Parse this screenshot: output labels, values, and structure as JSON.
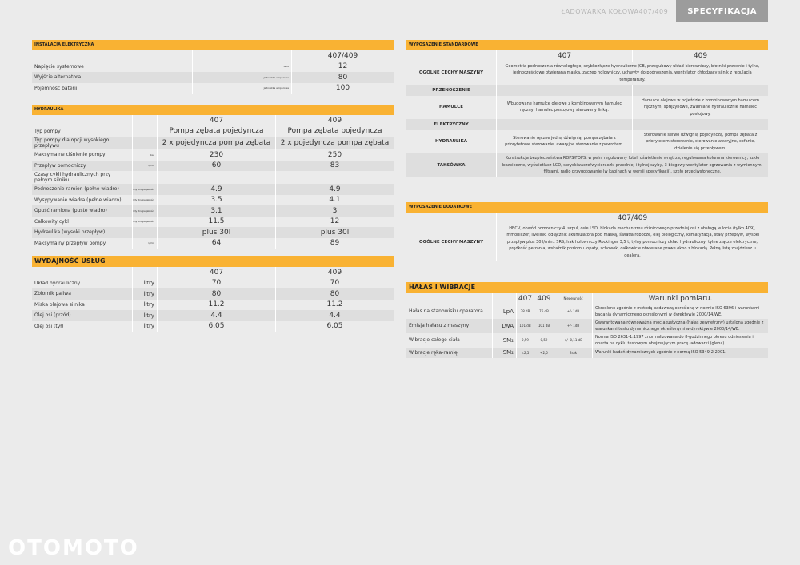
{
  "header": {
    "brand": "ŁADOWARKA KOŁOWA",
    "model": "407/409",
    "section": "SPECYFIKACJA"
  },
  "watermark": "OTOMOTO",
  "left": [
    {
      "title": "INSTALACJA ELEKTRYCZNA",
      "head": {
        "value": "407/409"
      },
      "rows": [
        {
          "label": "Napięcie systemowe",
          "unit": "Wolt",
          "value": "12"
        },
        {
          "label": "Wyjście alternatora",
          "unit": "Jednostka amperowa",
          "value": "80"
        },
        {
          "label": "Pojemność baterii",
          "unit": "Jednostka amperowa",
          "value": "100"
        }
      ]
    },
    {
      "title": "HYDRAULIKA",
      "head": {
        "v407": "407",
        "v409": "409"
      },
      "rows": [
        {
          "label": "Typ pompy",
          "v407": "Pompa zębata pojedyncza",
          "v409": "Pompa zębata pojedyncza"
        },
        {
          "label": "Typ pompy dla opcji wysokiego przepływu",
          "v407": "2 x pojedyncza pompa zębata",
          "v409": "2 x pojedyncza pompa zębata"
        },
        {
          "label": "Maksymalne ciśnienie pompy",
          "unit": "bar",
          "v407": "230",
          "v409": "250"
        },
        {
          "label": "Przepływ pomocniczy",
          "unit": "l/min",
          "v407": "60",
          "v409": "83"
        },
        {
          "label": "Czasy cykli hydraulicznych przy pełnym silniku"
        },
        {
          "label": "Podnoszenie ramion (pełne wiadro)",
          "unit": "Sekundy drugie jakości",
          "v407": "4.9",
          "v409": "4.9"
        },
        {
          "label": "Wysypywanie wiadra (pełne wiadro)",
          "unit": "Sekundy drugie jakości",
          "v407": "3.5",
          "v409": "4.1"
        },
        {
          "label": "Opuść ramiona (puste wiadro)",
          "unit": "Sekundy drugie jakości",
          "v407": "3.1",
          "v409": "3"
        },
        {
          "label": "Całkowity cykl",
          "unit": "Sekundy drugie jakości",
          "v407": "11.5",
          "v409": "12"
        },
        {
          "label": "Hydraulika (wysoki przepływ)",
          "v407": "plus 30l",
          "v409": "plus 30l"
        },
        {
          "label": "Maksymalny przepływ pompy",
          "unit": "l/min",
          "v407": "64",
          "v409": "89"
        }
      ]
    },
    {
      "title": "WYDAJNOŚĆ USŁUG",
      "head": {
        "v407": "407",
        "v409": "409"
      },
      "rows": [
        {
          "label": "Układ hydrauliczny",
          "unit": "litry",
          "v407": "70",
          "v409": "70"
        },
        {
          "label": "Zbiornik paliwa",
          "unit": "litry",
          "v407": "80",
          "v409": "80"
        },
        {
          "label": "Miska olejowa silnika",
          "unit": "litry",
          "v407": "11.2",
          "v409": "11.2"
        },
        {
          "label": "Olej osi (przód)",
          "unit": "litry",
          "v407": "4.4",
          "v409": "4.4"
        },
        {
          "label": "Olej osi (tył)",
          "unit": "litry",
          "v407": "6.05",
          "v409": "6.05"
        }
      ]
    }
  ],
  "right": [
    {
      "title": "WYPOSAŻENIE STANDARDOWE",
      "head": {
        "v407": "407",
        "v409": "409"
      },
      "rows": [
        {
          "label": "OGÓLNE CECHY MASZYNY",
          "both": "Geometria podnoszenia równoległego, szybkozłącze hydrauliczne JCB, przegubowy układ kierowniczy, błotniki przednie i tylne, jednoczęściowe otwierana maska, zaczep holowniczy, uchwyty do podnoszenia, wentylator chłodzący silnik z regulacją temperatury."
        },
        {
          "label": "PRZENOSZENIE"
        },
        {
          "label": "HAMULCE",
          "v407": "Wbudowane hamulce olejowe z kombinowanym hamulec ręczny; hamulec postojowy sterowany linką.",
          "v409": "Hamulce olejowe w pojeździe z kombinowanym hamulcem ręcznym; sprężynowe, zwalniane hydraulicznie hamulec postojowy."
        },
        {
          "label": "ELEKTRYCZNY"
        },
        {
          "label": "HYDRAULIKA",
          "v407": "Sterowanie ręczne jedną dźwignią, pompa zębata z priorytetowe sterowanie, awaryjne sterowanie z powrotem.",
          "v409": "Sterowanie serwo dźwignią pojedynczą, pompa zębata z priorytetem sterowanie, sterowanie awaryjne, cofanie, dzielenie się przepływem."
        },
        {
          "label": "TAKSÓWKA",
          "both": "Konstrukcja bezpieczeństwa ROPS/FOPS, w pełni regulowany fotel, oświetlenie wnętrza, regulowana kolumna kierownicy, szkło bezpieczne, wyświetlacz LCD, spryskiwacze/wycieraczki przedniej i tylnej szyby, 3-biegowy wentylator ogrzewania z wymiennymi filtrami, radio przygotowanie (w kabinach w wersji specyfikacji), szkło przeciwsłoneczne."
        }
      ]
    },
    {
      "title": "WYPOSAŻENIE DODATKOWE",
      "head": {
        "value": "407/409"
      },
      "rows": [
        {
          "label": "OGÓLNE CECHY MASZYNY",
          "value": "HBCV, obwód pomocniczy 4. szpul, osie LSD, blokada mechanizmu różnicowego przedniej osi z obsługą w locie (tylko 409), immobilizer, livelink, odłącznik akumulatora pod maską, światła robocze, olej biologiczny, klimatyzacja, stały przepływ, wysoki przepływ plus 30 l/min., SRS, hak holowniczy Rockinger 3,5 t, tylny pomocniczy układ hydrauliczny, tylne złącze elektryczne, prędkość pełzania, wskaźnik poziomu łopaty, schowek, całkowicie otwierane prawe okno z blokadą. Pełną listę znajdziesz u dealera."
        }
      ]
    },
    {
      "title": "HAŁAS I WIBRACJE",
      "head": {
        "v407": "407",
        "v409": "409",
        "unc": "Niepewność",
        "cond": "Warunki pomiaru."
      },
      "rows": [
        {
          "label": "Hałas na stanowisku operatora",
          "unit": "LpA",
          "v407": "78 dB",
          "v409": "76 dB",
          "unc": "+/- 1dB",
          "cond": "Określono zgodnie z metodą badawczą określoną w normie ISO 6396 i warunkami badania dynamicznego określonymi w dyrektywie 2000/14/WE."
        },
        {
          "label": "Emisja hałasu z maszyny",
          "unit": "LWA",
          "v407": "101 dB",
          "v409": "101 dB",
          "unc": "+/- 1dB",
          "cond": "Gwarantowana równoważna moc akustyczna (hałas zewnętrzny) ustalona zgodnie z warunkami testu dynamicznego określonymi w dyrektywie 2000/14/WE."
        },
        {
          "label": "Wibracje całego ciała",
          "unit": "SM₂",
          "v407": "0,59",
          "v409": "0,59",
          "unc": "+/- 0,11 dB",
          "cond": "Norma ISO 2631-1:1997 znormalizowana do 8-godzinnego okresu odniesienia i oparta na cyklu testowym obejmującym pracę ładowarki (gleba)."
        },
        {
          "label": "Wibracje ręka-ramię",
          "unit": "SM₂",
          "v407": "<2,5",
          "v409": "<2,5",
          "unc": "Brak",
          "cond": "Warunki badań dynamicznych zgodnie z normą ISO 5349-2:2001."
        }
      ]
    }
  ]
}
